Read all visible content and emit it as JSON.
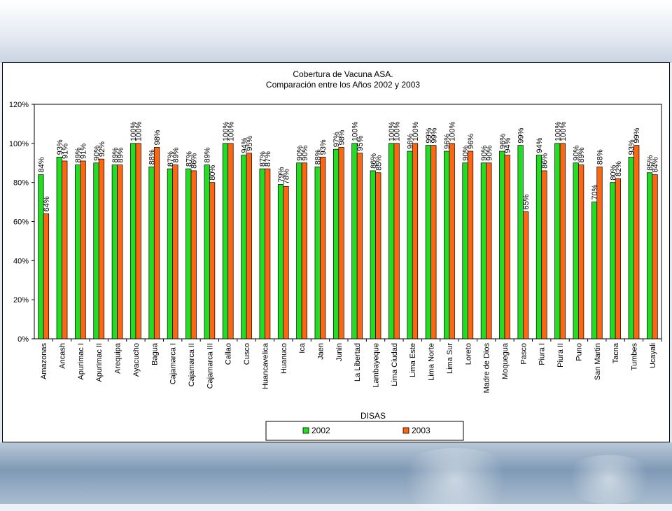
{
  "chart_data": {
    "type": "bar",
    "title": "Cobertura de Vacuna ASA.",
    "subtitle": "Comparación entre los Años 2002 y 2003",
    "xlabel": "DISAS",
    "ylabel": "",
    "ylim": [
      0,
      1.2
    ],
    "y_ticks": [
      "0%",
      "20%",
      "40%",
      "60%",
      "80%",
      "100%",
      "120%"
    ],
    "grid": false,
    "legend_position": "bottom",
    "categories": [
      "Amazonas",
      "Ancash",
      "Apurimac I",
      "Apurimac II",
      "Arequipa",
      "Ayacucho",
      "Bagua",
      "Cajamarca I",
      "Cajamarca II",
      "Cajamarca III",
      "Callao",
      "Cusco",
      "Huancavelica",
      "Huanuco",
      "Ica",
      "Jaen",
      "Junin",
      "La Libertad",
      "Lambayeque",
      "Lima Ciudad",
      "Lima Este",
      "Lima Norte",
      "Lima Sur",
      "Loreto",
      "Madre de Dios",
      "Moquegua",
      "Pasco",
      "Piura I",
      "Piura II",
      "Puno",
      "San Martin",
      "Tacna",
      "Tumbes",
      "Ucayali"
    ],
    "series": [
      {
        "name": "2002",
        "color": "#22dd22",
        "values": [
          0.84,
          0.93,
          0.89,
          0.9,
          0.89,
          1.0,
          0.88,
          0.87,
          0.87,
          0.89,
          1.0,
          0.94,
          0.87,
          0.79,
          0.9,
          0.88,
          0.97,
          1.0,
          0.86,
          1.0,
          0.96,
          0.99,
          0.96,
          0.9,
          0.9,
          0.96,
          0.99,
          0.94,
          1.0,
          0.9,
          0.7,
          0.8,
          0.93,
          0.85
        ],
        "labels": [
          "84%",
          "93%",
          "89%",
          "90%",
          "89%",
          "100%",
          "88%",
          "87%",
          "87%",
          "89%",
          "100%",
          "94%",
          "87%",
          "79%",
          "90%",
          "88%",
          "97%",
          "100%",
          "86%",
          "100%",
          "96%",
          "99%",
          "96%",
          "90%",
          "90%",
          "96%",
          "99%",
          "94%",
          "100%",
          "90%",
          "70%",
          "80%",
          "93%",
          "85%"
        ]
      },
      {
        "name": "2003",
        "color": "#ff6611",
        "values": [
          0.64,
          0.91,
          0.91,
          0.92,
          0.89,
          1.0,
          0.98,
          0.89,
          0.86,
          0.8,
          1.0,
          0.95,
          0.87,
          0.78,
          0.9,
          0.93,
          0.98,
          0.95,
          0.85,
          1.0,
          1.0,
          0.99,
          1.0,
          0.96,
          0.9,
          0.94,
          0.65,
          0.86,
          1.0,
          0.89,
          0.88,
          0.82,
          0.99,
          0.84
        ],
        "labels": [
          "64%",
          "91%",
          "91%",
          "92%",
          "89%",
          "100%",
          "98%",
          "89%",
          "86%",
          "80%",
          "100%",
          "95%",
          "87%",
          "78%",
          "90%",
          "93%",
          "98%",
          "95%",
          "85%",
          "100%",
          "100%",
          "99%",
          "100%",
          "96%",
          "90%",
          "94%",
          "65%",
          "86%",
          "100%",
          "89%",
          "88%",
          "82%",
          "99%",
          "84%"
        ]
      }
    ]
  }
}
